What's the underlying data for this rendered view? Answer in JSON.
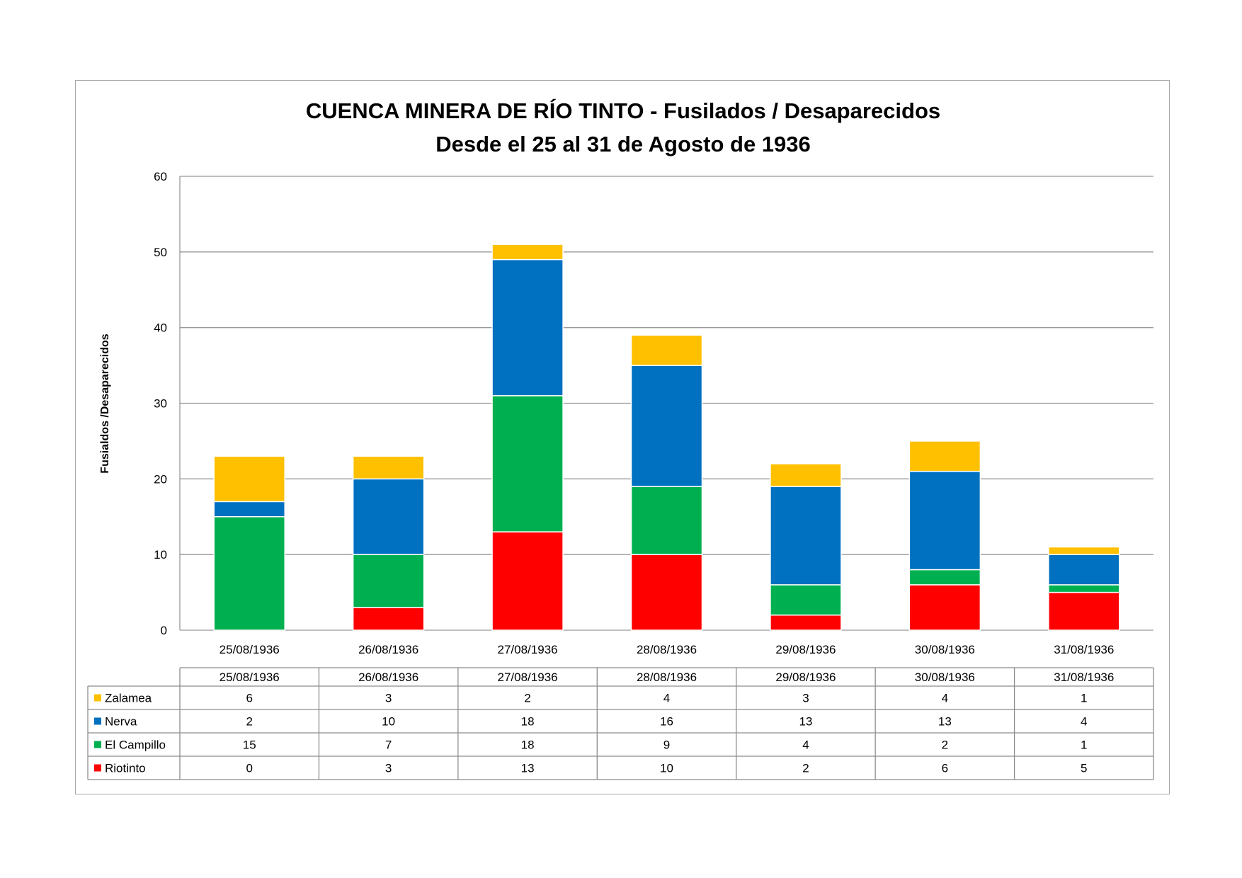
{
  "chart_data": {
    "type": "bar",
    "stacked": true,
    "title": "CUENCA MINERA DE RÍO TINTO - Fusilados / Desaparecidos",
    "subtitle": "Desde el 25 al 31 de Agosto de 1936",
    "ylabel": "Fusialdos /Desaparecidos",
    "xlabel": "",
    "ylim": [
      0,
      60
    ],
    "yticks": [
      0,
      10,
      20,
      30,
      40,
      50,
      60
    ],
    "grid": true,
    "legend": "data-table-left",
    "categories": [
      "25/08/1936",
      "26/08/1936",
      "27/08/1936",
      "28/08/1936",
      "29/08/1936",
      "30/08/1936",
      "31/08/1936"
    ],
    "series": [
      {
        "name": "Riotinto",
        "color": "#ff0000",
        "values": [
          0,
          3,
          13,
          10,
          2,
          6,
          5
        ]
      },
      {
        "name": "El Campillo",
        "color": "#00b050",
        "values": [
          15,
          7,
          18,
          9,
          4,
          2,
          1
        ]
      },
      {
        "name": "Nerva",
        "color": "#0070c0",
        "values": [
          2,
          10,
          18,
          16,
          13,
          13,
          4
        ]
      },
      {
        "name": "Zalamea",
        "color": "#ffc000",
        "values": [
          6,
          3,
          2,
          4,
          3,
          4,
          1
        ]
      }
    ],
    "table_row_order": [
      "Zalamea",
      "Nerva",
      "El Campillo",
      "Riotinto"
    ]
  }
}
